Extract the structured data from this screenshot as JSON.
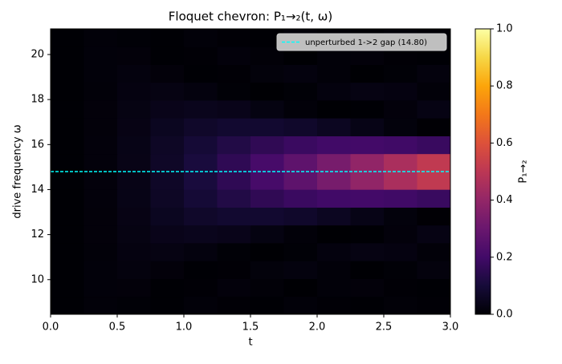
{
  "chart_data": {
    "type": "heatmap",
    "title": "Floquet chevron: P₁→₂(t, ω)",
    "x_label": "t",
    "y_label": "drive frequency ω",
    "colorbar_label": "P₁→₂",
    "colormap": "inferno",
    "x": [
      0.125,
      0.375,
      0.625,
      0.875,
      1.125,
      1.375,
      1.625,
      1.875,
      2.125,
      2.375,
      2.625,
      2.875
    ],
    "y": [
      8.86,
      9.65,
      10.44,
      11.24,
      12.03,
      12.82,
      13.61,
      14.41,
      15.2,
      15.99,
      16.78,
      17.58,
      18.37,
      19.16,
      19.95,
      20.75
    ],
    "z": [
      [
        0.001,
        0.009,
        0.006,
        0.001,
        0.009,
        0.004,
        0.002,
        0.009,
        0.003,
        0.002,
        0.008,
        0.004
      ],
      [
        0.001,
        0.011,
        0.012,
        0.002,
        0.004,
        0.013,
        0.008,
        0.0,
        0.009,
        0.012,
        0.003,
        0.002
      ],
      [
        0.001,
        0.011,
        0.019,
        0.012,
        0.002,
        0.003,
        0.014,
        0.019,
        0.009,
        0.0,
        0.006,
        0.017
      ],
      [
        0.001,
        0.01,
        0.022,
        0.027,
        0.018,
        0.006,
        0.0,
        0.005,
        0.018,
        0.027,
        0.022,
        0.009
      ],
      [
        0.0014,
        0.0115,
        0.0268,
        0.0401,
        0.0448,
        0.0388,
        0.0248,
        0.0097,
        0.0008,
        0.0022,
        0.0134,
        0.029
      ],
      [
        0.0014,
        0.012,
        0.0305,
        0.052,
        0.0708,
        0.0822,
        0.083,
        0.073,
        0.055,
        0.0334,
        0.0143,
        0.0023
      ],
      [
        0.0014,
        0.0124,
        0.0333,
        0.0616,
        0.0943,
        0.1279,
        0.1585,
        0.1828,
        0.1981,
        0.203,
        0.1965,
        0.1798
      ],
      [
        0.0014,
        0.0125,
        0.0344,
        0.0664,
        0.1077,
        0.1566,
        0.2115,
        0.2708,
        0.3327,
        0.3946,
        0.4551,
        0.5125
      ],
      [
        0.0014,
        0.0125,
        0.0344,
        0.0664,
        0.1077,
        0.1566,
        0.2115,
        0.2708,
        0.3327,
        0.3946,
        0.4551,
        0.5125
      ],
      [
        0.0014,
        0.0124,
        0.0333,
        0.0616,
        0.0943,
        0.1279,
        0.1585,
        0.1828,
        0.1981,
        0.203,
        0.1965,
        0.1798
      ],
      [
        0.0014,
        0.012,
        0.0305,
        0.052,
        0.0708,
        0.0822,
        0.083,
        0.073,
        0.055,
        0.0334,
        0.0143,
        0.0023
      ],
      [
        0.0014,
        0.0115,
        0.0268,
        0.0401,
        0.0448,
        0.0388,
        0.0248,
        0.0097,
        0.0008,
        0.0022,
        0.0134,
        0.029
      ],
      [
        0.001,
        0.01,
        0.022,
        0.027,
        0.018,
        0.006,
        0.0,
        0.005,
        0.018,
        0.027,
        0.022,
        0.009
      ],
      [
        0.001,
        0.011,
        0.019,
        0.012,
        0.002,
        0.003,
        0.014,
        0.019,
        0.009,
        0.0,
        0.006,
        0.017
      ],
      [
        0.001,
        0.011,
        0.012,
        0.002,
        0.004,
        0.013,
        0.008,
        0.0,
        0.009,
        0.012,
        0.003,
        0.002
      ],
      [
        0.001,
        0.009,
        0.006,
        0.001,
        0.009,
        0.004,
        0.002,
        0.009,
        0.003,
        0.002,
        0.008,
        0.004
      ]
    ],
    "xlim": [
      0,
      3
    ],
    "ylim": [
      8.46,
      21.14
    ],
    "zlim": [
      0,
      1
    ],
    "xticks": [
      {
        "value": 0,
        "label": "0.0"
      },
      {
        "value": 0.5,
        "label": "0.5"
      },
      {
        "value": 1,
        "label": "1.0"
      },
      {
        "value": 1.5,
        "label": "1.5"
      },
      {
        "value": 2,
        "label": "2.0"
      },
      {
        "value": 2.5,
        "label": "2.5"
      },
      {
        "value": 3,
        "label": "3.0"
      }
    ],
    "yticks": [
      10,
      12,
      14,
      16,
      18,
      20
    ],
    "zticks": [
      {
        "value": 0,
        "label": "0.0"
      },
      {
        "value": 0.2,
        "label": "0.2"
      },
      {
        "value": 0.4,
        "label": "0.4"
      },
      {
        "value": 0.6,
        "label": "0.6"
      },
      {
        "value": 0.8,
        "label": "0.8"
      },
      {
        "value": 1,
        "label": "1.0"
      }
    ],
    "hline": {
      "name": "unperturbed 1->2 gap (14.80)",
      "value": 14.8,
      "color": "#00ffff"
    },
    "legend": "upper right"
  }
}
